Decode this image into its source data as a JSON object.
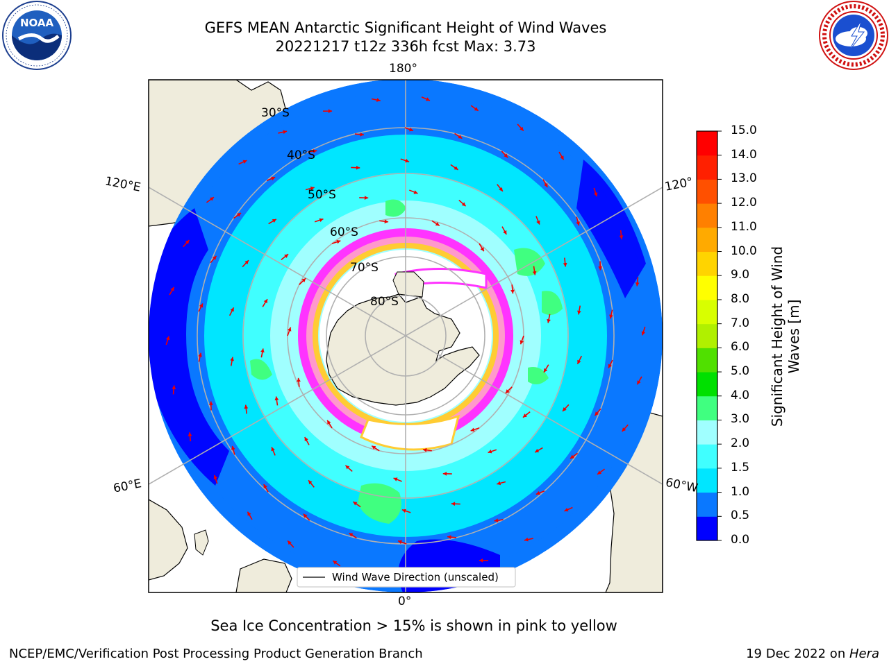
{
  "title": {
    "line1": "GEFS MEAN Antarctic Significant Height of Wind Waves",
    "line2": "20221217 t12z 336h fcst   Max: 3.73"
  },
  "logos": {
    "left": {
      "icon": "noaa-logo",
      "text": "NOAA",
      "ring_text": "NATIONAL OCEANIC AND ATMOSPHERIC ADMINISTRATION · U.S. DEPARTMENT OF COMMERCE"
    },
    "right": {
      "icon": "national-weather-service-logo",
      "ring_text": "NATIONAL WEATHER SERVICE"
    }
  },
  "map": {
    "projection": "South polar stereographic",
    "longitude_labels": {
      "top": "180°",
      "bottom": "0°",
      "upper_left": "120°E",
      "lower_left": "60°E",
      "upper_right": "120°",
      "lower_right": "60°W"
    },
    "latitude_labels": [
      "30°S",
      "40°S",
      "50°S",
      "60°S",
      "70°S",
      "80°S"
    ],
    "legend": {
      "label": "Wind Wave Direction (unscaled)"
    },
    "colors": {
      "land": "#efecdc",
      "graticule": "#b0b0b0",
      "arrow": "#ee0000",
      "ice": [
        "#ff33ff",
        "#ff99cc",
        "#ffcc33",
        "#ffffff"
      ]
    }
  },
  "colorbar": {
    "title": "Significant Height of Wind Waves [m]",
    "title_line1": "Significant Height of Wind",
    "title_line2": "Waves [m]",
    "ticks": [
      "15.0",
      "14.0",
      "13.0",
      "12.0",
      "11.0",
      "10.0",
      "9.0",
      "8.0",
      "7.0",
      "6.0",
      "5.0",
      "4.0",
      "3.0",
      "2.0",
      "1.5",
      "1.0",
      "0.5",
      "0.0"
    ],
    "colors_bottom_to_top": [
      "#0000ff",
      "#0a78ff",
      "#00e6ff",
      "#40ffff",
      "#a0ffff",
      "#40ff80",
      "#00e000",
      "#50e000",
      "#b0f000",
      "#d8ff00",
      "#ffff00",
      "#ffd400",
      "#ffaa00",
      "#ff8000",
      "#ff5000",
      "#ff2000",
      "#ff0000"
    ]
  },
  "note": "Sea Ice Concentration > 15% is shown in pink to yellow",
  "footer": {
    "left": "NCEP/EMC/Verification Post Processing Product Generation Branch",
    "right_date": "19 Dec 2022 on ",
    "right_host": "Hera"
  }
}
